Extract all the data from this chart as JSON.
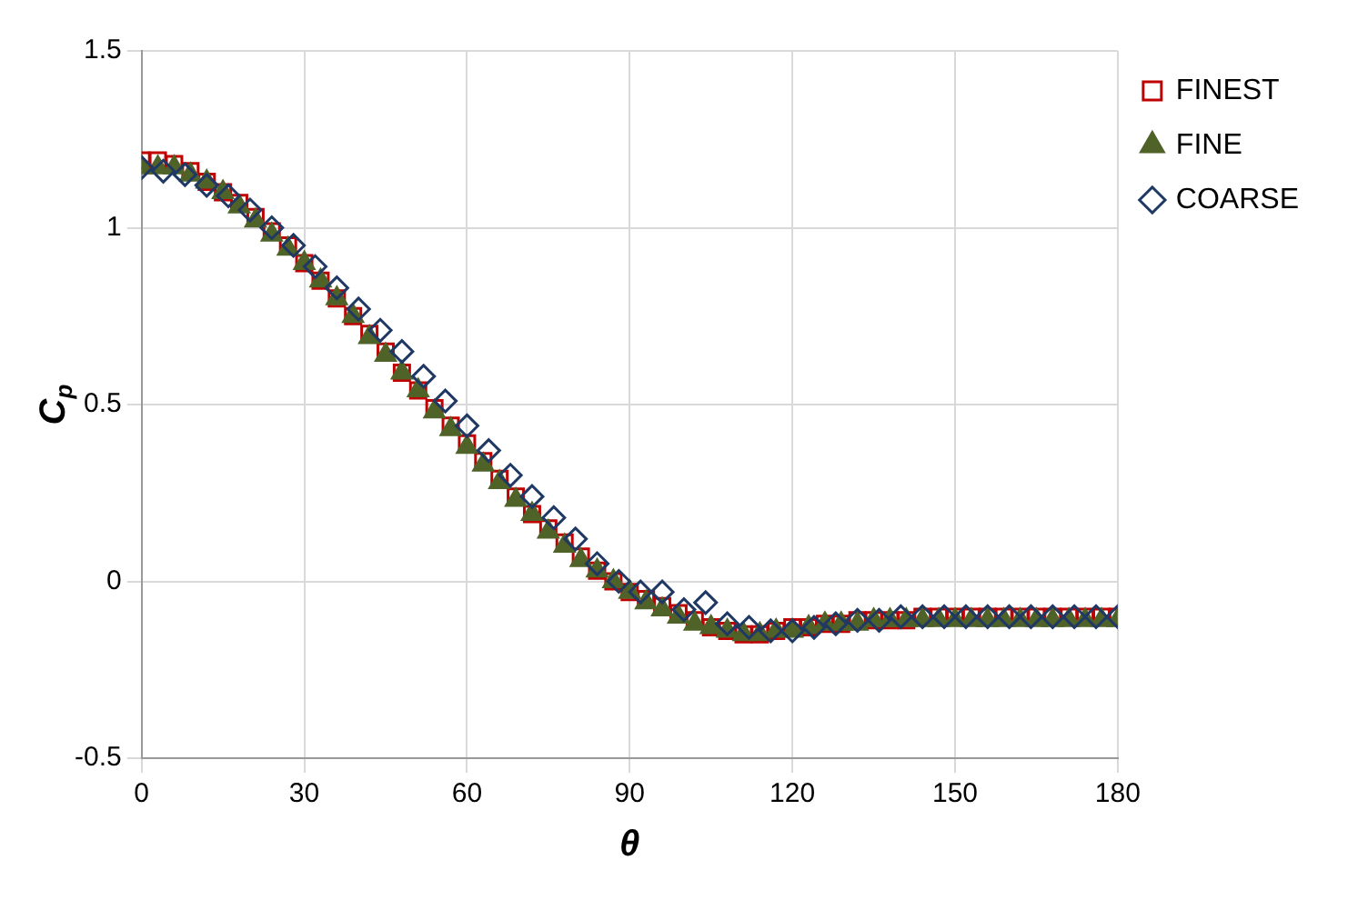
{
  "chart_data": {
    "type": "scatter",
    "xlabel": "θ",
    "ylabel": "C$_{p}$",
    "xlim": [
      0,
      180
    ],
    "xticks": [
      0,
      30,
      60,
      90,
      120,
      150,
      180
    ],
    "ylim": [
      -0.5,
      1.5
    ],
    "yticks": [
      -0.5,
      0,
      0.5,
      1,
      1.5
    ],
    "grid": true,
    "legend": "top right",
    "series": [
      {
        "name": "FINEST",
        "color": "#c00000",
        "marker": "square",
        "x": [
          0,
          3,
          6,
          9,
          12,
          15,
          18,
          21,
          24,
          27,
          30,
          33,
          36,
          39,
          42,
          45,
          48,
          51,
          54,
          57,
          60,
          63,
          66,
          69,
          72,
          75,
          78,
          81,
          84,
          87,
          90,
          93,
          96,
          99,
          102,
          105,
          108,
          111,
          114,
          117,
          120,
          123,
          126,
          129,
          132,
          135,
          138,
          141,
          144,
          147,
          150,
          153,
          156,
          159,
          162,
          165,
          168,
          171,
          174,
          177,
          180
        ],
        "values": [
          1.19,
          1.19,
          1.18,
          1.16,
          1.13,
          1.1,
          1.07,
          1.03,
          0.99,
          0.95,
          0.9,
          0.85,
          0.8,
          0.75,
          0.7,
          0.65,
          0.59,
          0.54,
          0.49,
          0.44,
          0.39,
          0.34,
          0.29,
          0.24,
          0.19,
          0.15,
          0.11,
          0.07,
          0.03,
          0,
          -0.03,
          -0.05,
          -0.07,
          -0.09,
          -0.11,
          -0.13,
          -0.14,
          -0.15,
          -0.15,
          -0.14,
          -0.13,
          -0.13,
          -0.12,
          -0.12,
          -0.11,
          -0.11,
          -0.11,
          -0.11,
          -0.1,
          -0.1,
          -0.1,
          -0.1,
          -0.1,
          -0.1,
          -0.1,
          -0.1,
          -0.1,
          -0.1,
          -0.1,
          -0.1,
          -0.1
        ]
      },
      {
        "name": "FINE",
        "color": "#4f6228",
        "marker": "triangle",
        "x": [
          0,
          3,
          6,
          9,
          12,
          15,
          18,
          21,
          24,
          27,
          30,
          33,
          36,
          39,
          42,
          45,
          48,
          51,
          54,
          57,
          60,
          63,
          66,
          69,
          72,
          75,
          78,
          81,
          84,
          87,
          90,
          93,
          96,
          99,
          102,
          105,
          108,
          111,
          114,
          117,
          120,
          123,
          126,
          129,
          132,
          135,
          138,
          141,
          144,
          147,
          150,
          153,
          156,
          159,
          162,
          165,
          168,
          171,
          174,
          177,
          180
        ],
        "values": [
          1.17,
          1.17,
          1.17,
          1.15,
          1.13,
          1.1,
          1.06,
          1.02,
          0.98,
          0.94,
          0.9,
          0.85,
          0.8,
          0.75,
          0.69,
          0.64,
          0.59,
          0.54,
          0.48,
          0.43,
          0.38,
          0.33,
          0.28,
          0.23,
          0.19,
          0.14,
          0.1,
          0.06,
          0.03,
          0,
          -0.03,
          -0.06,
          -0.08,
          -0.1,
          -0.12,
          -0.13,
          -0.14,
          -0.15,
          -0.15,
          -0.14,
          -0.14,
          -0.13,
          -0.12,
          -0.12,
          -0.12,
          -0.11,
          -0.11,
          -0.11,
          -0.11,
          -0.11,
          -0.11,
          -0.11,
          -0.11,
          -0.11,
          -0.11,
          -0.11,
          -0.11,
          -0.11,
          -0.11,
          -0.11,
          -0.11
        ]
      },
      {
        "name": "COARSE",
        "color": "#1f3864",
        "marker": "diamond",
        "x": [
          0,
          4,
          8,
          12,
          16,
          20,
          24,
          28,
          32,
          36,
          40,
          44,
          48,
          52,
          56,
          60,
          64,
          68,
          72,
          76,
          80,
          84,
          88,
          92,
          96,
          100,
          104,
          108,
          112,
          116,
          120,
          124,
          128,
          132,
          136,
          140,
          144,
          148,
          152,
          156,
          160,
          164,
          168,
          172,
          176,
          180
        ],
        "values": [
          1.17,
          1.16,
          1.15,
          1.12,
          1.09,
          1.05,
          1,
          0.95,
          0.89,
          0.83,
          0.77,
          0.71,
          0.65,
          0.58,
          0.51,
          0.44,
          0.37,
          0.3,
          0.24,
          0.18,
          0.12,
          0.05,
          0,
          -0.03,
          -0.03,
          -0.08,
          -0.06,
          -0.12,
          -0.13,
          -0.14,
          -0.14,
          -0.13,
          -0.12,
          -0.11,
          -0.11,
          -0.1,
          -0.1,
          -0.1,
          -0.1,
          -0.1,
          -0.1,
          -0.1,
          -0.1,
          -0.1,
          -0.1,
          -0.1
        ]
      }
    ]
  }
}
